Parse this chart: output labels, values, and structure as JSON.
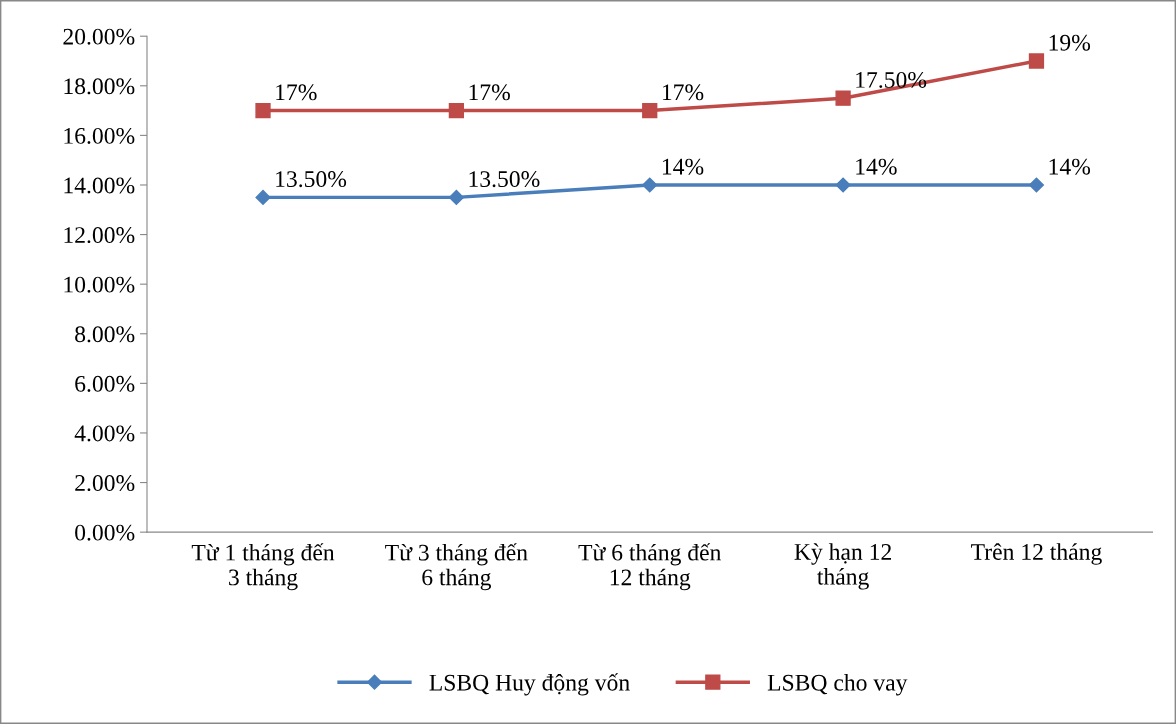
{
  "chart_data": {
    "type": "line",
    "categories": [
      "Từ 1 tháng đến\n3 tháng",
      "Từ 3 tháng đến\n6 tháng",
      "Từ 6 tháng đến\n12 tháng",
      "Kỳ hạn 12\ntháng",
      "Trên 12 tháng"
    ],
    "series": [
      {
        "name": "LSBQ Huy động vốn",
        "color": "#4a7ebb",
        "marker": "diamond",
        "values": [
          13.5,
          13.5,
          14,
          14,
          14
        ],
        "value_labels": [
          "13.50%",
          "13.50%",
          "14%",
          "14%",
          "14%"
        ]
      },
      {
        "name": "LSBQ cho vay",
        "color": "#be4b48",
        "marker": "square",
        "values": [
          17,
          17,
          17,
          17.5,
          19
        ],
        "value_labels": [
          "17%",
          "17%",
          "17%",
          "17.50%",
          "19%"
        ]
      }
    ],
    "ylim": [
      0,
      20
    ],
    "yticks": [
      {
        "value": 0,
        "label": "0.00%"
      },
      {
        "value": 2,
        "label": "2.00%"
      },
      {
        "value": 4,
        "label": "4.00%"
      },
      {
        "value": 6,
        "label": "6.00%"
      },
      {
        "value": 8,
        "label": "8.00%"
      },
      {
        "value": 10,
        "label": "10.00%"
      },
      {
        "value": 12,
        "label": "12.00%"
      },
      {
        "value": 14,
        "label": "14.00%"
      },
      {
        "value": 16,
        "label": "16.00%"
      },
      {
        "value": 18,
        "label": "18.00%"
      },
      {
        "value": 20,
        "label": "20.00%"
      }
    ],
    "grid": false,
    "legend": "bottom"
  }
}
